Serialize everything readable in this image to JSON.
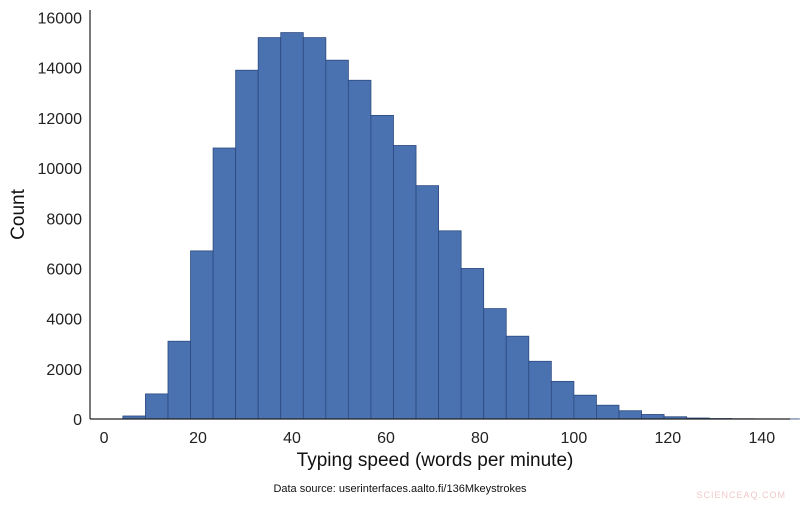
{
  "chart_data": {
    "type": "bar",
    "title": "",
    "xlabel": "Typing speed (words per minute)",
    "ylabel": "Count",
    "xlim": [
      -3,
      146
    ],
    "ylim": [
      0,
      16300
    ],
    "xticks": [
      0,
      20,
      40,
      60,
      80,
      100,
      120,
      140
    ],
    "yticks": [
      0,
      2000,
      4000,
      6000,
      8000,
      10000,
      12000,
      14000,
      16000
    ],
    "bin_width": 4.8,
    "bin_start": 4.0,
    "values": [
      120,
      1000,
      3100,
      6700,
      10800,
      13900,
      15200,
      15400,
      15200,
      14300,
      13500,
      12100,
      10900,
      9300,
      7500,
      6000,
      4400,
      3300,
      2300,
      1500,
      950,
      550,
      330,
      180,
      90,
      40,
      20,
      10,
      5,
      3
    ],
    "bar_color": "#4a72b0",
    "edge_color": "#2c4a80",
    "grid": false,
    "source_note": "Data source: userinterfaces.aalto.fi/136Mkeystrokes"
  },
  "watermark": "SCIENCEAQ.COM"
}
